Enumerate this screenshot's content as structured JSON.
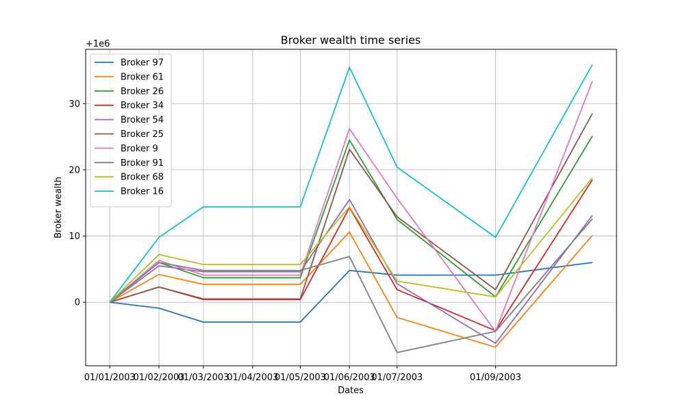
{
  "chart_data": {
    "type": "line",
    "title": "Broker wealth time series",
    "xlabel": "Dates",
    "ylabel": "Broker wealth",
    "offset_label": "+1e6",
    "x_ticks": [
      "01/01/2003",
      "01/02/2003",
      "01/03/2003",
      "01/04/2003",
      "01/05/2003",
      "01/06/2003",
      "01/07/2003",
      "01/09/2003"
    ],
    "y_ticks": [
      0,
      10,
      20,
      30
    ],
    "ylim": [
      -9.6,
      38.2
    ],
    "grid": true,
    "legend_position": "top-left",
    "x_dates": [
      "01/01/2003",
      "01/02/2003",
      "01/03/2003",
      "01/04/2003",
      "01/05/2003",
      "01/06/2003",
      "01/07/2003",
      "01/09/2003",
      "01/11/2003"
    ],
    "series": [
      {
        "name": "Broker 97",
        "color": "#1f77b4",
        "values": [
          0,
          -0.9,
          -3.0,
          -3.0,
          -3.0,
          4.8,
          4.1,
          4.1,
          6.0
        ]
      },
      {
        "name": "Broker 61",
        "color": "#ff7f0e",
        "values": [
          0,
          4.2,
          2.7,
          2.7,
          2.7,
          10.6,
          -2.3,
          -6.8,
          10.1
        ]
      },
      {
        "name": "Broker 26",
        "color": "#2ca02c",
        "values": [
          0,
          6.0,
          3.7,
          3.7,
          3.7,
          24.5,
          12.5,
          0.8,
          25.1
        ]
      },
      {
        "name": "Broker 34",
        "color": "#d62728",
        "values": [
          0,
          2.3,
          0.4,
          0.4,
          0.4,
          14.3,
          1.9,
          -4.3,
          18.5
        ]
      },
      {
        "name": "Broker 54",
        "color": "#9467bd",
        "values": [
          0,
          5.5,
          4.6,
          4.6,
          4.6,
          15.5,
          2.8,
          -6.2,
          13.1
        ]
      },
      {
        "name": "Broker 25",
        "color": "#8c564b",
        "values": [
          0,
          2.3,
          0.5,
          0.5,
          0.5,
          23.1,
          12.9,
          1.9,
          28.5
        ]
      },
      {
        "name": "Broker 9",
        "color": "#e377c2",
        "values": [
          0,
          6.3,
          4.1,
          4.1,
          4.1,
          26.2,
          15.7,
          -4.4,
          33.4
        ]
      },
      {
        "name": "Broker 91",
        "color": "#7f7f7f",
        "values": [
          0,
          6.0,
          4.8,
          4.8,
          4.8,
          6.9,
          -7.6,
          -4.4,
          12.6
        ]
      },
      {
        "name": "Broker 68",
        "color": "#bcbd22",
        "values": [
          0,
          7.2,
          5.7,
          5.7,
          5.7,
          14.4,
          3.2,
          0.8,
          18.8
        ]
      },
      {
        "name": "Broker 16",
        "color": "#17becf",
        "values": [
          0,
          9.8,
          14.4,
          14.4,
          14.4,
          35.5,
          20.4,
          9.8,
          35.9
        ]
      }
    ]
  }
}
